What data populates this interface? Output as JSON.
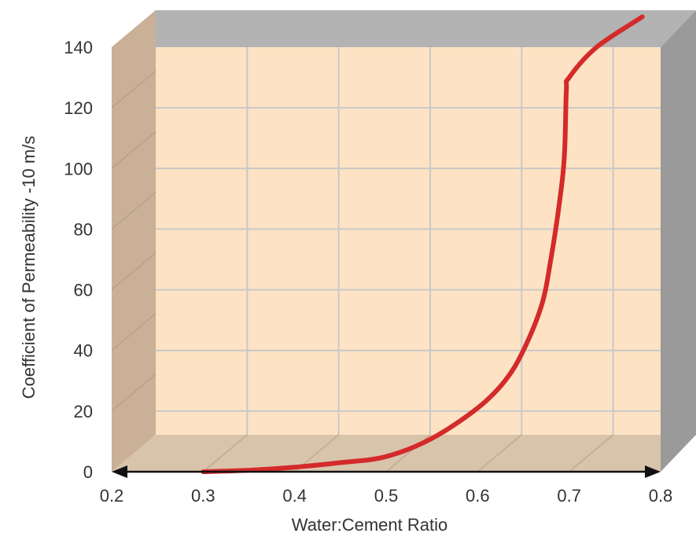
{
  "chart_data": {
    "type": "line",
    "xlabel": "Water:Cement Ratio",
    "ylabel": "Coefficient of Permeability -10 m/s",
    "xlim": [
      0.2,
      0.8
    ],
    "ylim": [
      0,
      140
    ],
    "x_ticks": [
      "0.2",
      "0.3",
      "0.4",
      "0.5",
      "0.6",
      "0.7",
      "0.8"
    ],
    "y_ticks": [
      "0",
      "20",
      "40",
      "60",
      "80",
      "100",
      "120",
      "140"
    ],
    "grid": true,
    "series": [
      {
        "color": "#d42a2a",
        "x": [
          0.3,
          0.35,
          0.4,
          0.45,
          0.5,
          0.55,
          0.6,
          0.63,
          0.65,
          0.67,
          0.68,
          0.69,
          0.695,
          0.697,
          0.7,
          0.73,
          0.78
        ],
        "y": [
          0,
          0.5,
          1.5,
          3,
          5,
          11,
          21,
          30,
          40,
          55,
          70,
          90,
          105,
          126,
          130,
          140,
          150
        ]
      }
    ],
    "colors": {
      "plot_background": "#fde3c4",
      "back_wall": "#fde3c4",
      "side_wall_left": "#c9b097",
      "floor": "#d8c4ab",
      "top_band": "#b3b3b3",
      "right_band": "#9a9a9a",
      "grid": "#c8c8c8",
      "line": "#d42a2a"
    }
  }
}
